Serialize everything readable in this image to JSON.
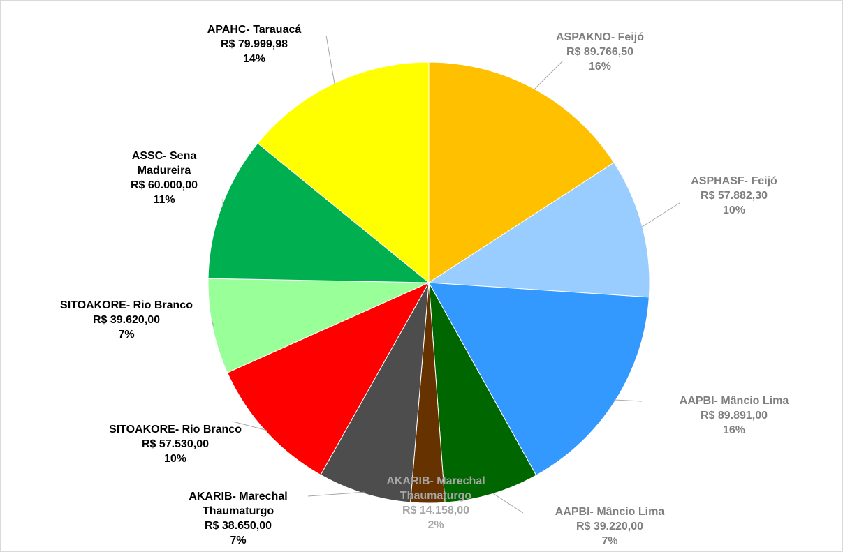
{
  "chart_data": {
    "type": "pie",
    "categories": [
      "ASPAKNO- Feijó",
      "ASPHASF- Feijó",
      "AAPBI- Mâncio Lima",
      "AAPBI- Mâncio Lima",
      "AKARIB- Marechal Thaumaturgo",
      "AKARIB- Marechal Thaumaturgo",
      "SITOAKORE- Rio Branco",
      "SITOAKORE- Rio Branco",
      "ASSC- Sena Madureira",
      "APAHC- Tarauacá"
    ],
    "values": [
      89766.5,
      57882.3,
      89891,
      39220,
      14158,
      38650,
      57530,
      39620,
      60000,
      79999.98
    ],
    "value_labels": [
      "R$ 89.766,50",
      "R$ 57.882,30",
      "R$ 89.891,00",
      "R$ 39.220,00",
      "R$ 14.158,00",
      "R$ 38.650,00",
      "R$ 57.530,00",
      "R$ 39.620,00",
      "R$ 60.000,00",
      "R$ 79.999,98"
    ],
    "percent_labels": [
      "16%",
      "10%",
      "16%",
      "7%",
      "2%",
      "7%",
      "10%",
      "7%",
      "11%",
      "14%"
    ],
    "colors": [
      "#FFC000",
      "#99CCFF",
      "#3399FF",
      "#006600",
      "#663300",
      "#4D4D4D",
      "#FF0000",
      "#99FF99",
      "#00B050",
      "#FFFF00"
    ],
    "label_colors": [
      "#7F7F7F",
      "#7F7F7F",
      "#7F7F7F",
      "#7F7F7F",
      "#A6A6A6",
      "#000000",
      "#000000",
      "#000000",
      "#000000",
      "#000000"
    ]
  }
}
